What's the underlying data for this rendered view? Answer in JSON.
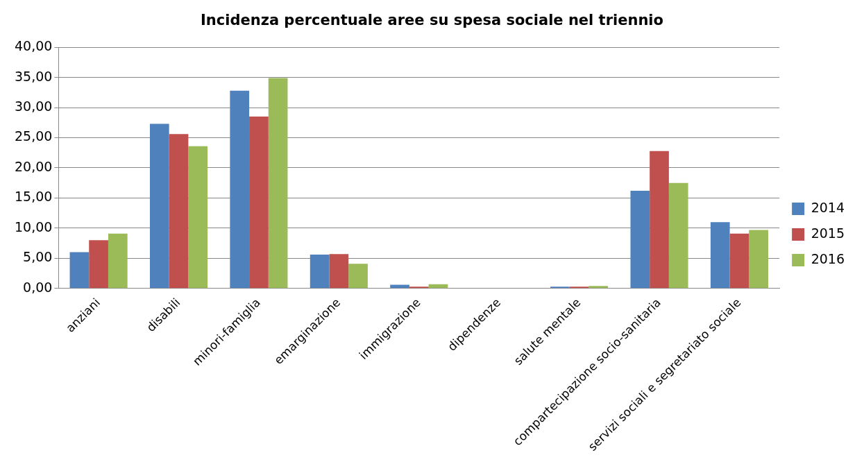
{
  "chart_data": {
    "type": "bar",
    "title": "Incidenza percentuale aree su spesa sociale nel triennio",
    "categories": [
      "anziani",
      "disabili",
      "minori-famiglia",
      "emarginazione",
      "immigrazione",
      "dipendenze",
      "salute mentale",
      "compartecipazione socio-sanitaria",
      "servizi sociali e segretariato sociale"
    ],
    "series": [
      {
        "name": "2014",
        "color": "#4f81bd",
        "values": [
          6.0,
          27.3,
          32.8,
          5.6,
          0.6,
          0,
          0.3,
          16.2,
          11.0
        ]
      },
      {
        "name": "2015",
        "color": "#c0504d",
        "values": [
          8.0,
          25.6,
          28.5,
          5.7,
          0.3,
          0,
          0.3,
          22.8,
          9.1
        ]
      },
      {
        "name": "2016",
        "color": "#9bbb59",
        "values": [
          9.1,
          23.6,
          34.9,
          4.1,
          0.7,
          0,
          0.4,
          17.5,
          9.7
        ]
      }
    ],
    "ylim": [
      0,
      40
    ],
    "yticks": [
      {
        "value": 0,
        "label": "0,00"
      },
      {
        "value": 5,
        "label": "5,00"
      },
      {
        "value": 10,
        "label": "10,00"
      },
      {
        "value": 15,
        "label": "15,00"
      },
      {
        "value": 20,
        "label": "20,00"
      },
      {
        "value": 25,
        "label": "25,00"
      },
      {
        "value": 30,
        "label": "30,00"
      },
      {
        "value": 35,
        "label": "35,00"
      },
      {
        "value": 40,
        "label": "40,00"
      }
    ],
    "grid": "y",
    "legend": "right"
  }
}
